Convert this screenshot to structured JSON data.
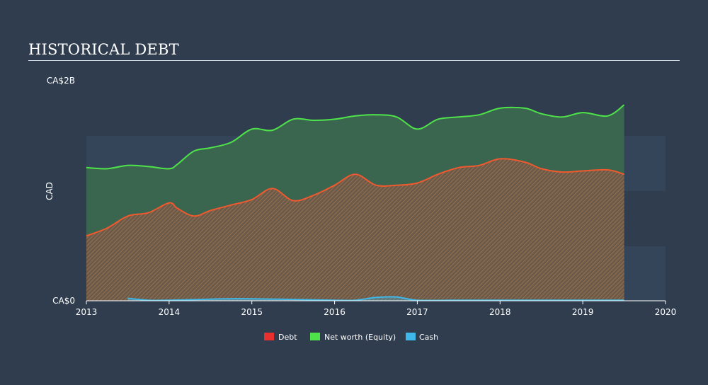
{
  "page": {
    "title": "HISTORICAL DEBT"
  },
  "chart_data": {
    "type": "area",
    "title": "HISTORICAL DEBT",
    "ylabel": "CAD",
    "y_tick_labels": [
      "CA$0",
      "CA$2B"
    ],
    "y_ticks": [
      0,
      2.0
    ],
    "ylim": [
      0,
      2.0
    ],
    "xlim": [
      2013.0,
      2020.0
    ],
    "x_ticks": [
      2013,
      2014,
      2015,
      2016,
      2017,
      2018,
      2019,
      2020
    ],
    "x_tick_labels": [
      "2013",
      "2014",
      "2015",
      "2016",
      "2017",
      "2018",
      "2019",
      "2020"
    ],
    "legend_position": "bottom-center",
    "grid": false,
    "series": [
      {
        "name": "Net worth (Equity)",
        "color": "#4fe34a",
        "x": [
          2013.0,
          2013.25,
          2013.5,
          2013.75,
          2014.0,
          2014.1,
          2014.3,
          2014.5,
          2014.75,
          2015.0,
          2015.25,
          2015.5,
          2015.75,
          2016.0,
          2016.25,
          2016.5,
          2016.75,
          2017.0,
          2017.25,
          2017.5,
          2017.75,
          2018.0,
          2018.3,
          2018.5,
          2018.75,
          2019.0,
          2019.3,
          2019.5
        ],
        "values": [
          1.21,
          1.2,
          1.23,
          1.22,
          1.2,
          1.24,
          1.36,
          1.39,
          1.44,
          1.56,
          1.55,
          1.65,
          1.64,
          1.65,
          1.68,
          1.69,
          1.67,
          1.56,
          1.65,
          1.67,
          1.69,
          1.75,
          1.75,
          1.7,
          1.67,
          1.71,
          1.68,
          1.78
        ]
      },
      {
        "name": "Debt",
        "color": "#e8312e",
        "x": [
          2013.0,
          2013.25,
          2013.5,
          2013.75,
          2014.0,
          2014.1,
          2014.3,
          2014.5,
          2014.75,
          2015.0,
          2015.25,
          2015.5,
          2015.75,
          2016.0,
          2016.25,
          2016.5,
          2016.75,
          2017.0,
          2017.25,
          2017.5,
          2017.75,
          2018.0,
          2018.3,
          2018.5,
          2018.75,
          2019.0,
          2019.3,
          2019.5
        ],
        "values": [
          0.59,
          0.66,
          0.77,
          0.8,
          0.89,
          0.84,
          0.77,
          0.82,
          0.87,
          0.92,
          1.02,
          0.91,
          0.96,
          1.05,
          1.15,
          1.05,
          1.05,
          1.07,
          1.15,
          1.21,
          1.23,
          1.29,
          1.26,
          1.2,
          1.17,
          1.18,
          1.19,
          1.15
        ]
      },
      {
        "name": "Cash",
        "color": "#3fb7e8",
        "x": [
          2013.5,
          2013.75,
          2014.0,
          2014.5,
          2014.75,
          2015.0,
          2015.5,
          2016.0,
          2016.25,
          2016.5,
          2016.75,
          2017.0,
          2017.5,
          2018.0,
          2018.5,
          2019.0,
          2019.5
        ],
        "values": [
          0.022,
          0.005,
          0.005,
          0.015,
          0.018,
          0.018,
          0.012,
          0.005,
          0.005,
          0.03,
          0.035,
          0.005,
          0.005,
          0.005,
          0.005,
          0.005,
          0.005
        ]
      }
    ]
  }
}
